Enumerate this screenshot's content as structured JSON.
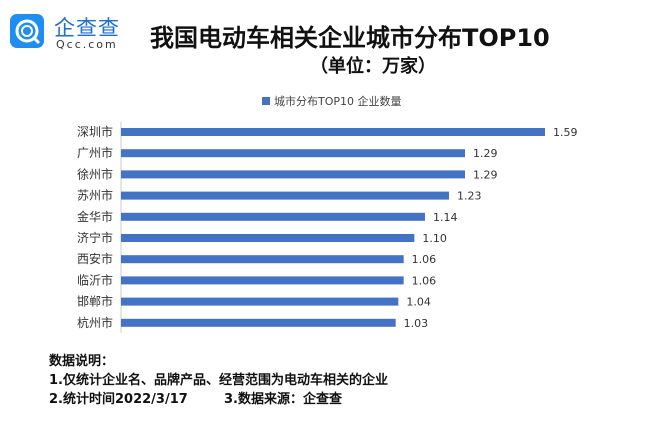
{
  "brand": {
    "name": "企查查",
    "domain": "Qcc.com",
    "color": "#1e8ef0"
  },
  "title": "我国电动车相关企业城市分布TOP10",
  "subtitle": "（单位：万家）",
  "chart_data": {
    "type": "bar",
    "orientation": "horizontal",
    "title": "我国电动车相关企业城市分布TOP10",
    "subtitle": "（单位：万家）",
    "categories": [
      "深圳市",
      "广州市",
      "徐州市",
      "苏州市",
      "金华市",
      "济宁市",
      "西安市",
      "临沂市",
      "邯郸市",
      "杭州市"
    ],
    "series": [
      {
        "name": "城市分布TOP10 企业数量",
        "values": [
          1.59,
          1.29,
          1.29,
          1.23,
          1.14,
          1.1,
          1.06,
          1.06,
          1.04,
          1.03
        ],
        "color": "#4472c4"
      }
    ],
    "data_labels": [
      "1.59",
      "1.29",
      "1.29",
      "1.23",
      "1.14",
      "1.10",
      "1.06",
      "1.06",
      "1.04",
      "1.03"
    ],
    "legend": "top",
    "grid": false,
    "xlim": [
      0,
      1.59
    ]
  },
  "notes": {
    "heading": "数据说明：",
    "line1": "1.仅统计企业名、品牌产品、经营范围为电动车相关的企业",
    "line2": "2.统计时间2022/3/17        3.数据来源：企查查"
  }
}
